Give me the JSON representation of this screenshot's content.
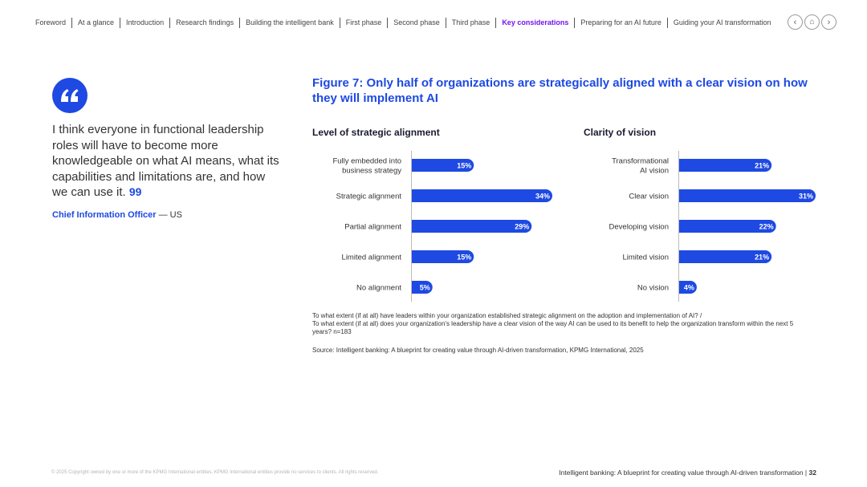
{
  "nav": {
    "items": [
      "Foreword",
      "At a glance",
      "Introduction",
      "Research findings",
      "Building the intelligent bank",
      "First phase",
      "Second phase",
      "Third phase",
      "Key considerations",
      "Preparing for an AI future",
      "Guiding your AI transformation"
    ],
    "active_index": 8,
    "prev_icon": "chevron-left-icon",
    "home_icon": "home-icon",
    "next_icon": "chevron-right-icon"
  },
  "quote": {
    "icon": "quote-open-icon",
    "text": "I think everyone in functional leadership roles will have to become more knowledgeable on what AI means, what its capabilities and limitations are, and how we can use it.",
    "close_mark": "99",
    "role": "Chief Information Officer",
    "region": "— US"
  },
  "figure": {
    "title": "Figure 7: Only half of organizations are strategically aligned with a clear vision on how they will implement AI"
  },
  "chart_data": [
    {
      "type": "bar",
      "orientation": "horizontal",
      "title": "Level of strategic alignment",
      "categories": [
        "Fully embedded into business strategy",
        "Strategic alignment",
        "Partial alignment",
        "Limited alignment",
        "No alignment"
      ],
      "values": [
        15,
        34,
        29,
        15,
        5
      ],
      "value_suffix": "%",
      "xlim": [
        0,
        34
      ],
      "grid": false,
      "color": "#1e49e2"
    },
    {
      "type": "bar",
      "orientation": "horizontal",
      "title": "Clarity of vision",
      "categories": [
        "Transformational AI vision",
        "Clear vision",
        "Developing vision",
        "Limited vision",
        "No vision"
      ],
      "values": [
        21,
        31,
        22,
        21,
        4
      ],
      "value_suffix": "%",
      "xlim": [
        0,
        31
      ],
      "grid": false,
      "color": "#1e49e2"
    }
  ],
  "note": {
    "line1": "To what extent (if at all) have leaders within your organization established strategic alignment on the adoption and implementation of AI? /",
    "line2": "To what extent (if at all) does your organization's leadership have a clear vision of the way AI can be used to its benefit to help the organization transform within the next 5 years? n=183"
  },
  "source": "Source: Intelligent banking: A blueprint for creating value through AI-driven transformation, KPMG International, 2025",
  "footer": {
    "copyright": "© 2025 Copyright owned by one or more of the KPMG International entities. KPMG International entities provide no services to clients. All rights reserved.",
    "doc_title": "Intelligent banking: A blueprint for creating value through AI-driven transformation |",
    "page": "32"
  },
  "colors": {
    "accent": "#1e49e2",
    "active_nav": "#7213ea"
  }
}
